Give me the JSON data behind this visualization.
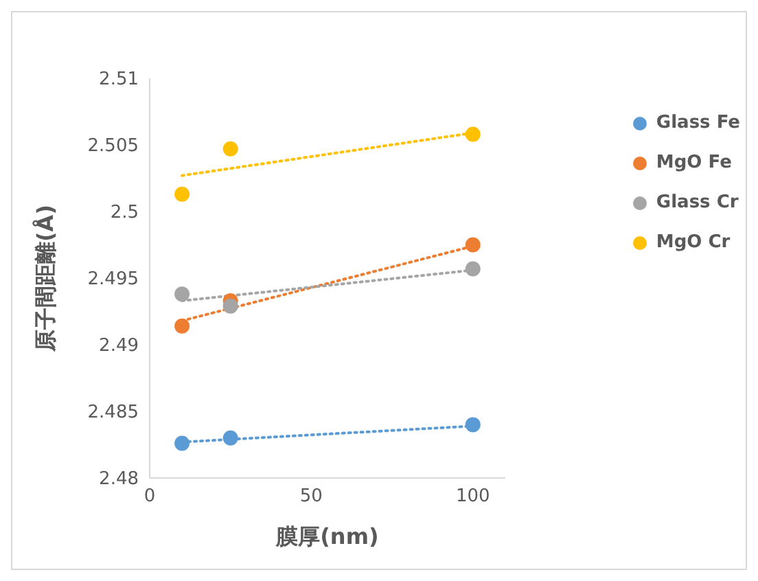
{
  "chart_data": {
    "type": "scatter",
    "xlabel": "膜厚(nm)",
    "ylabel": "原子間距離(Å)",
    "xlim": [
      0,
      110
    ],
    "xticks": [
      0,
      50,
      100
    ],
    "ylim": [
      2.48,
      2.51
    ],
    "yticks": [
      2.48,
      2.485,
      2.49,
      2.495,
      2.5,
      2.505,
      2.51
    ],
    "grid": false,
    "legend": "right",
    "marker": "circle",
    "series": [
      {
        "name": "Glass Fe",
        "color": "#5b9bd5",
        "x": [
          10,
          25,
          100
        ],
        "values": [
          2.4826,
          2.483,
          2.484
        ]
      },
      {
        "name": "MgO Fe",
        "color": "#ed7d31",
        "x": [
          10,
          25,
          100
        ],
        "values": [
          2.4914,
          2.4933,
          2.4975
        ]
      },
      {
        "name": "Glass Cr",
        "color": "#a5a5a5",
        "x": [
          10,
          25,
          100
        ],
        "values": [
          2.4938,
          2.4929,
          2.4957
        ]
      },
      {
        "name": "MgO Cr",
        "color": "#ffc000",
        "x": [
          10,
          25,
          100
        ],
        "values": [
          2.5013,
          2.5047,
          2.5058
        ]
      },
      {
        "type": "line",
        "color": "#5b9bd5",
        "x": [
          10,
          100
        ],
        "values": [
          2.4827,
          2.4839
        ],
        "line_style": "dotted",
        "marker": "none"
      },
      {
        "type": "line",
        "color": "#ed7d31",
        "x": [
          10,
          100
        ],
        "values": [
          2.4918,
          2.4974
        ],
        "line_style": "dotted",
        "marker": "none"
      },
      {
        "type": "line",
        "color": "#a5a5a5",
        "x": [
          10,
          100
        ],
        "values": [
          2.4933,
          2.4956
        ],
        "line_style": "dotted",
        "marker": "none"
      },
      {
        "type": "line",
        "color": "#ffc000",
        "x": [
          10,
          100
        ],
        "values": [
          2.5027,
          2.5059
        ],
        "line_style": "dotted",
        "marker": "none"
      }
    ]
  }
}
